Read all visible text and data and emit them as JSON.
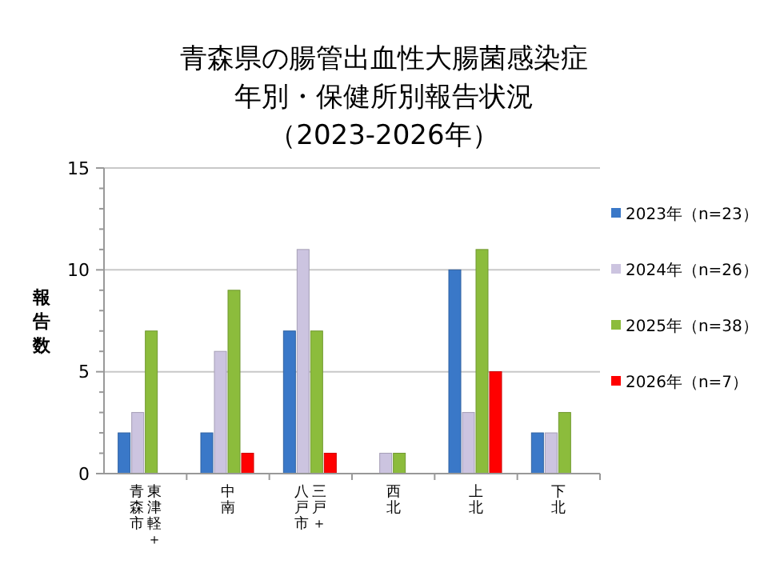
{
  "chart_data": {
    "type": "bar",
    "title": "青森県の腸管出血性大腸菌感染症",
    "subtitle": "年別・保健所別報告状況（2023-2026年）",
    "ylabel": "報告数",
    "categories": [
      "東津軽＋青森市",
      "中南",
      "三戸＋八戸市",
      "西北",
      "上北",
      "下北"
    ],
    "series": [
      {
        "name": "2023年（n=23）",
        "color": "#3a78c8",
        "values": [
          2,
          2,
          7,
          0,
          10,
          2
        ]
      },
      {
        "name": "2024年（n=26）",
        "color": "#ccc4e0",
        "values": [
          3,
          6,
          11,
          1,
          3,
          2
        ]
      },
      {
        "name": "2025年（n=38）",
        "color": "#8cbc3c",
        "values": [
          7,
          9,
          7,
          1,
          11,
          3
        ]
      },
      {
        "name": "2026年（n=7）",
        "color": "#ff0000",
        "values": [
          0,
          1,
          1,
          0,
          5,
          0
        ]
      }
    ],
    "ylim": [
      0,
      15
    ],
    "yticks": [
      0,
      5,
      10,
      15
    ],
    "grid": "y",
    "legend": "right"
  }
}
